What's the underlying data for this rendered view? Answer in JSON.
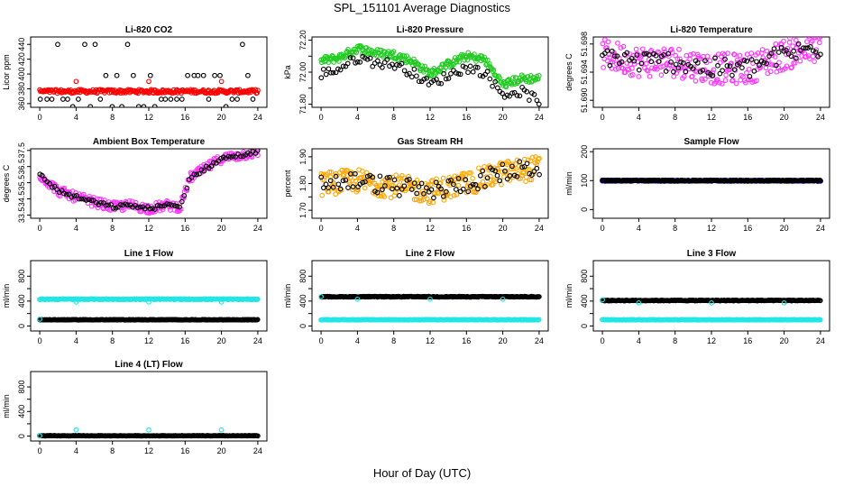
{
  "page_title": "SPL_151101  Average Diagnostics",
  "x_axis_title": "Hour of Day (UTC)",
  "colors": {
    "black": "#000000",
    "red": "#ff0000",
    "green": "#22cc22",
    "magenta": "#ff33ff",
    "orange": "#ffa500",
    "blue": "#0000ff",
    "cyan": "#22e6e6"
  },
  "chart_data": [
    {
      "type": "scatter",
      "title": "Li-820 CO2",
      "ylabel": "Licor ppm",
      "xlim": [
        -1,
        25
      ],
      "ylim": [
        355,
        450
      ],
      "x_ticks": [
        0,
        4,
        8,
        12,
        16,
        20,
        24
      ],
      "y_ticks": [
        360,
        380,
        400,
        420,
        440
      ],
      "grid": false,
      "series": [
        {
          "color": "black",
          "pattern": "levels",
          "levels": [
            440,
            398,
            366,
            356
          ],
          "dense": false
        },
        {
          "color": "red",
          "pattern": "band",
          "mean": 376.5,
          "spread": 2.5,
          "dense": true
        },
        {
          "color": "red",
          "pattern": "points",
          "points": [
            [
              4,
              390
            ],
            [
              12,
              390
            ],
            [
              20,
              390
            ]
          ]
        }
      ]
    },
    {
      "type": "scatter",
      "title": "Li-820 Pressure",
      "ylabel": "kPa",
      "xlim": [
        -1,
        25
      ],
      "ylim": [
        71.78,
        72.22
      ],
      "x_ticks": [
        0,
        4,
        8,
        12,
        16,
        20,
        24
      ],
      "y_ticks": [
        71.8,
        71.9,
        72.0,
        72.1,
        72.2
      ],
      "y_tick_labels": [
        "71.80",
        "",
        "72.00",
        "",
        "72.20"
      ],
      "grid": false,
      "series": [
        {
          "color": "green",
          "pattern": "curve",
          "knots": [
            [
              0,
              72.07
            ],
            [
              2,
              72.09
            ],
            [
              4,
              72.15
            ],
            [
              6,
              72.12
            ],
            [
              8,
              72.11
            ],
            [
              10,
              72.07
            ],
            [
              12,
              71.99
            ],
            [
              14,
              72.05
            ],
            [
              16,
              72.1
            ],
            [
              18,
              72.08
            ],
            [
              20,
              71.92
            ],
            [
              22,
              71.96
            ],
            [
              24,
              71.96
            ]
          ],
          "spread": 0.025,
          "dense": true
        },
        {
          "color": "black",
          "pattern": "curve",
          "knots": [
            [
              0,
              71.99
            ],
            [
              2,
              72.02
            ],
            [
              4,
              72.09
            ],
            [
              6,
              72.06
            ],
            [
              8,
              72.05
            ],
            [
              10,
              72.0
            ],
            [
              12,
              71.92
            ],
            [
              14,
              71.98
            ],
            [
              16,
              72.03
            ],
            [
              18,
              72.0
            ],
            [
              20,
              71.86
            ],
            [
              22,
              71.88
            ],
            [
              24,
              71.82
            ]
          ],
          "spread": 0.03,
          "dense": false
        }
      ]
    },
    {
      "type": "scatter",
      "title": "Li-820 Temperature",
      "ylabel": "degrees C",
      "xlim": [
        -1,
        25
      ],
      "ylim": [
        51.689,
        51.699
      ],
      "x_ticks": [
        0,
        4,
        8,
        12,
        16,
        20,
        24
      ],
      "y_ticks": [
        51.69,
        51.694,
        51.698
      ],
      "y_tick_labels": [
        "51.690",
        "51.694",
        "51.698"
      ],
      "grid": false,
      "series": [
        {
          "color": "magenta",
          "pattern": "curve",
          "knots": [
            [
              0,
              51.6965
            ],
            [
              4,
              51.6955
            ],
            [
              8,
              51.6955
            ],
            [
              12,
              51.6945
            ],
            [
              16,
              51.6945
            ],
            [
              20,
              51.6965
            ],
            [
              24,
              51.6975
            ]
          ],
          "spread": 0.0022,
          "dense": true
        },
        {
          "color": "black",
          "pattern": "curve",
          "knots": [
            [
              0,
              51.6965
            ],
            [
              4,
              51.6955
            ],
            [
              8,
              51.6955
            ],
            [
              12,
              51.6945
            ],
            [
              16,
              51.6945
            ],
            [
              20,
              51.6965
            ],
            [
              24,
              51.6975
            ]
          ],
          "spread": 0.0015,
          "dense": false
        }
      ]
    },
    {
      "type": "scatter",
      "title": "Ambient Box Temperature",
      "ylabel": "degrees C",
      "xlim": [
        -1,
        25
      ],
      "ylim": [
        33.3,
        37.6
      ],
      "x_ticks": [
        0,
        4,
        8,
        12,
        16,
        20,
        24
      ],
      "y_ticks": [
        33.5,
        34.5,
        35.5,
        36.5,
        37.5
      ],
      "grid": false,
      "series": [
        {
          "color": "magenta",
          "pattern": "curve",
          "knots": [
            [
              0,
              36.0
            ],
            [
              2,
              35.0
            ],
            [
              4,
              34.6
            ],
            [
              6,
              34.3
            ],
            [
              8,
              34.0
            ],
            [
              10,
              34.1
            ],
            [
              12,
              33.9
            ],
            [
              14,
              34.1
            ],
            [
              15.5,
              34.0
            ],
            [
              16.5,
              35.8
            ],
            [
              18,
              36.3
            ],
            [
              20,
              37.0
            ],
            [
              22,
              37.2
            ],
            [
              24,
              37.4
            ]
          ],
          "spread": 0.3,
          "dense": true
        },
        {
          "color": "black",
          "pattern": "curve",
          "knots": [
            [
              0,
              36.0
            ],
            [
              2,
              35.0
            ],
            [
              4,
              34.6
            ],
            [
              6,
              34.3
            ],
            [
              8,
              34.0
            ],
            [
              10,
              34.1
            ],
            [
              12,
              33.9
            ],
            [
              14,
              34.1
            ],
            [
              15.5,
              34.0
            ],
            [
              16.5,
              35.8
            ],
            [
              18,
              36.3
            ],
            [
              20,
              37.0
            ],
            [
              22,
              37.2
            ],
            [
              24,
              37.4
            ]
          ],
          "spread": 0.12,
          "dense": false
        }
      ]
    },
    {
      "type": "scatter",
      "title": "Gas Stream RH",
      "ylabel": "percent",
      "xlim": [
        -1,
        25
      ],
      "ylim": [
        1.67,
        1.93
      ],
      "x_ticks": [
        0,
        4,
        8,
        12,
        16,
        20,
        24
      ],
      "y_ticks": [
        1.7,
        1.75,
        1.8,
        1.85,
        1.9
      ],
      "y_tick_labels": [
        "1.70",
        "",
        "1.80",
        "",
        "1.90"
      ],
      "grid": false,
      "series": [
        {
          "color": "orange",
          "pattern": "curve",
          "knots": [
            [
              0,
              1.8
            ],
            [
              4,
              1.81
            ],
            [
              8,
              1.79
            ],
            [
              12,
              1.77
            ],
            [
              16,
              1.8
            ],
            [
              20,
              1.84
            ],
            [
              24,
              1.86
            ]
          ],
          "spread": 0.045,
          "dense": true
        },
        {
          "color": "black",
          "pattern": "curve",
          "knots": [
            [
              0,
              1.8
            ],
            [
              4,
              1.81
            ],
            [
              8,
              1.79
            ],
            [
              12,
              1.77
            ],
            [
              16,
              1.8
            ],
            [
              20,
              1.84
            ],
            [
              24,
              1.86
            ]
          ],
          "spread": 0.035,
          "dense": false
        }
      ]
    },
    {
      "type": "scatter",
      "title": "Sample Flow",
      "ylabel": "ml/min",
      "xlim": [
        -1,
        25
      ],
      "ylim": [
        -30,
        210
      ],
      "x_ticks": [
        0,
        4,
        8,
        12,
        16,
        20,
        24
      ],
      "y_ticks": [
        0,
        100,
        200
      ],
      "grid": false,
      "series": [
        {
          "color": "blue",
          "pattern": "band",
          "mean": 100,
          "spread": 2,
          "dense": true
        },
        {
          "color": "black",
          "pattern": "band",
          "mean": 100,
          "spread": 2,
          "dense": true
        }
      ]
    },
    {
      "type": "scatter",
      "title": "Line 1 Flow",
      "ylabel": "ml/min",
      "xlim": [
        -1,
        25
      ],
      "ylim": [
        -80,
        1050
      ],
      "x_ticks": [
        0,
        4,
        8,
        12,
        16,
        20,
        24
      ],
      "y_ticks": [
        0,
        200,
        400,
        600,
        800
      ],
      "y_tick_labels": [
        "0",
        "",
        "400",
        "",
        "800"
      ],
      "grid": false,
      "series": [
        {
          "color": "cyan",
          "pattern": "band",
          "mean": 430,
          "spread": 6,
          "dense": true
        },
        {
          "color": "black",
          "pattern": "band",
          "mean": 100,
          "spread": 4,
          "dense": true
        },
        {
          "color": "cyan",
          "pattern": "points",
          "points": [
            [
              0,
              110
            ],
            [
              4,
              385
            ],
            [
              12,
              385
            ],
            [
              20,
              385
            ]
          ]
        }
      ]
    },
    {
      "type": "scatter",
      "title": "Line 2 Flow",
      "ylabel": "ml/min",
      "xlim": [
        -1,
        25
      ],
      "ylim": [
        -80,
        1050
      ],
      "x_ticks": [
        0,
        4,
        8,
        12,
        16,
        20,
        24
      ],
      "y_ticks": [
        0,
        200,
        400,
        600,
        800
      ],
      "y_tick_labels": [
        "0",
        "",
        "400",
        "",
        "800"
      ],
      "grid": false,
      "series": [
        {
          "color": "cyan",
          "pattern": "band",
          "mean": 100,
          "spread": 4,
          "dense": true
        },
        {
          "color": "black",
          "pattern": "band",
          "mean": 470,
          "spread": 6,
          "dense": true
        },
        {
          "color": "cyan",
          "pattern": "points",
          "points": [
            [
              0,
              470
            ],
            [
              4,
              430
            ],
            [
              12,
              430
            ],
            [
              20,
              430
            ]
          ]
        }
      ]
    },
    {
      "type": "scatter",
      "title": "Line 3 Flow",
      "ylabel": "ml/min",
      "xlim": [
        -1,
        25
      ],
      "ylim": [
        -80,
        1050
      ],
      "x_ticks": [
        0,
        4,
        8,
        12,
        16,
        20,
        24
      ],
      "y_ticks": [
        0,
        200,
        400,
        600,
        800
      ],
      "y_tick_labels": [
        "0",
        "",
        "400",
        "",
        "800"
      ],
      "grid": false,
      "series": [
        {
          "color": "cyan",
          "pattern": "band",
          "mean": 100,
          "spread": 4,
          "dense": true
        },
        {
          "color": "black",
          "pattern": "band",
          "mean": 410,
          "spread": 6,
          "dense": true
        },
        {
          "color": "cyan",
          "pattern": "points",
          "points": [
            [
              0,
              420
            ],
            [
              4,
              370
            ],
            [
              12,
              370
            ],
            [
              20,
              370
            ]
          ]
        }
      ]
    },
    {
      "type": "scatter",
      "title": "Line 4 (LT) Flow",
      "ylabel": "ml/min",
      "xlim": [
        -1,
        25
      ],
      "ylim": [
        -80,
        1050
      ],
      "x_ticks": [
        0,
        4,
        8,
        12,
        16,
        20,
        24
      ],
      "y_ticks": [
        0,
        200,
        400,
        600,
        800
      ],
      "y_tick_labels": [
        "0",
        "",
        "400",
        "",
        "800"
      ],
      "grid": false,
      "series": [
        {
          "color": "black",
          "pattern": "band",
          "mean": 5,
          "spread": 3,
          "dense": true
        },
        {
          "color": "cyan",
          "pattern": "points",
          "points": [
            [
              0,
              5
            ],
            [
              4,
              100
            ],
            [
              12,
              100
            ],
            [
              20,
              100
            ]
          ]
        }
      ]
    }
  ]
}
